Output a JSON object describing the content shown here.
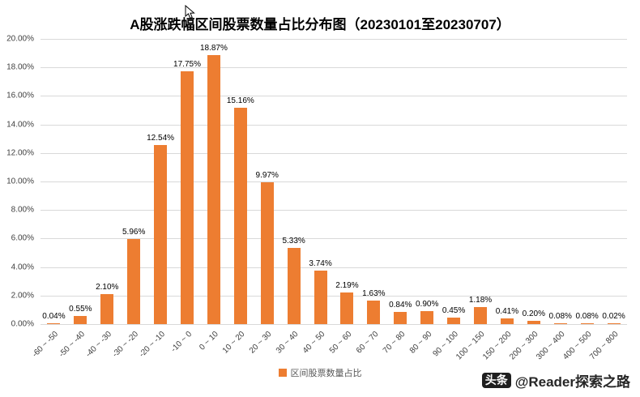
{
  "title": "A股涨跌幅区间股票数量占比分布图（20230101至20230707）",
  "legend": {
    "label": "区间股票数量占比"
  },
  "watermark": {
    "badge": "头条",
    "text": "@Reader探索之路"
  },
  "colors": {
    "bar": "#ED7D31",
    "gridline": "#d9d9d9",
    "axis": "#bfbfbf",
    "label": "#404040"
  },
  "chart_data": {
    "type": "bar",
    "title": "A股涨跌幅区间股票数量占比分布图（20230101至20230707）",
    "categories": [
      "-60 ~ -50",
      "-50 ~ -40",
      "-40 ~ -30",
      "-30 ~ -20",
      "-20 ~ -10",
      "-10 ~ 0",
      "0 ~ 10",
      "10 ~ 20",
      "20 ~ 30",
      "30 ~ 40",
      "40 ~ 50",
      "50 ~ 60",
      "60 ~ 70",
      "70 ~ 80",
      "80 ~ 90",
      "90 ~ 100",
      "100 ~ 150",
      "150 ~ 200",
      "200 ~ 300",
      "300 ~ 400",
      "400 ~ 500",
      "700 ~ 800"
    ],
    "values": [
      0.04,
      0.55,
      2.1,
      5.96,
      12.54,
      17.75,
      18.87,
      15.16,
      9.97,
      5.33,
      3.74,
      2.19,
      1.63,
      0.84,
      0.9,
      0.45,
      1.18,
      0.41,
      0.2,
      0.08,
      0.08,
      0.02
    ],
    "value_labels": [
      "0.04%",
      "0.55%",
      "2.10%",
      "5.96%",
      "12.54%",
      "17.75%",
      "18.87%",
      "15.16%",
      "9.97%",
      "5.33%",
      "3.74%",
      "2.19%",
      "1.63%",
      "0.84%",
      "0.90%",
      "0.45%",
      "1.18%",
      "0.41%",
      "0.20%",
      "0.08%",
      "0.08%",
      "0.02%"
    ],
    "xlabel": "",
    "ylabel": "",
    "ylim": [
      0,
      20
    ],
    "ytick_step": 2,
    "ytick_suffix": "%",
    "grid": true,
    "legend_position": "bottom",
    "series_name": "区间股票数量占比"
  }
}
